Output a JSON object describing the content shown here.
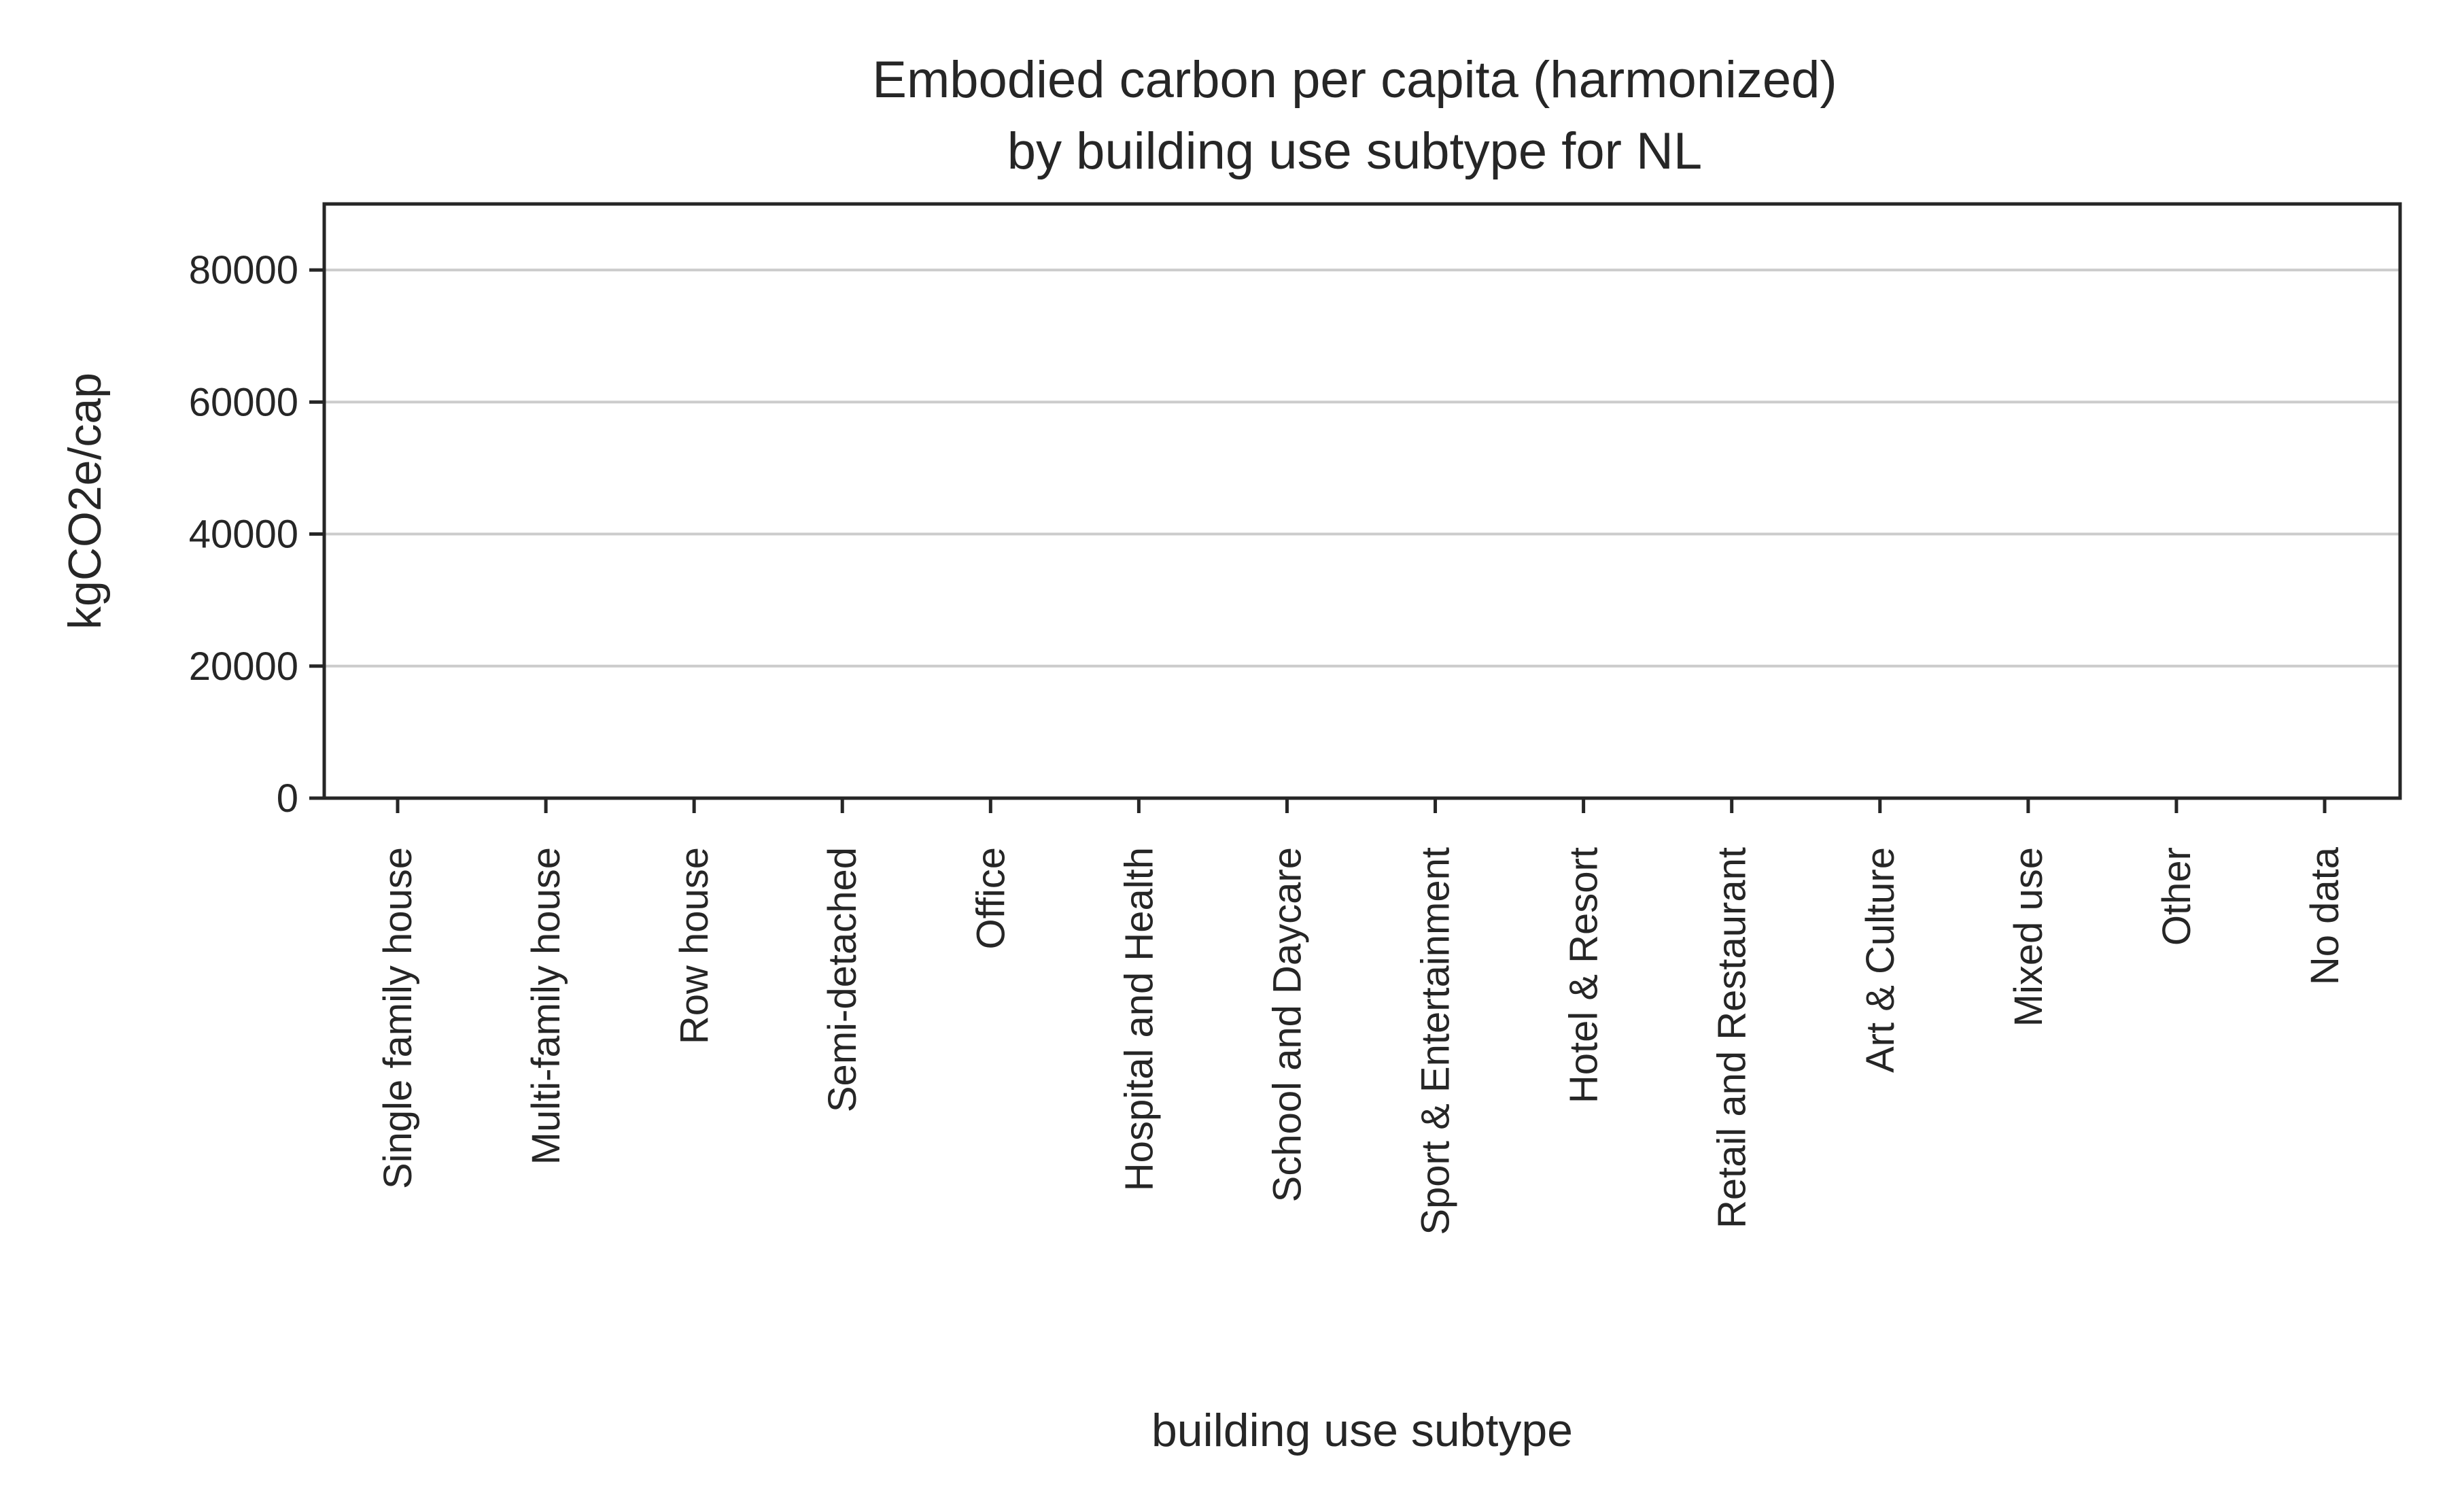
{
  "chart_data": {
    "type": "bar",
    "title": [
      "Embodied carbon per capita (harmonized)",
      "by building use subtype for NL"
    ],
    "xlabel": "building use subtype",
    "ylabel": "kgCO2e/cap",
    "categories": [
      "Single family house",
      "Multi-family house",
      "Row house",
      "Semi-detached",
      "Office",
      "Hospital and Health",
      "School and Daycare",
      "Sport & Entertainment",
      "Hotel & Resort",
      "Retail and Restaurant",
      "Art & Culture",
      "Mixed use",
      "Other",
      "No data"
    ],
    "values": [
      0,
      0,
      0,
      0,
      0,
      0,
      0,
      0,
      0,
      0,
      0,
      0,
      0,
      0
    ],
    "ylim": [
      0,
      90000
    ],
    "yticks": [
      0,
      20000,
      40000,
      60000,
      80000
    ],
    "grid": "horizontal",
    "legend": "none",
    "colors": {
      "axis": "#262626",
      "grid": "#cccccc",
      "text": "#262626"
    }
  }
}
